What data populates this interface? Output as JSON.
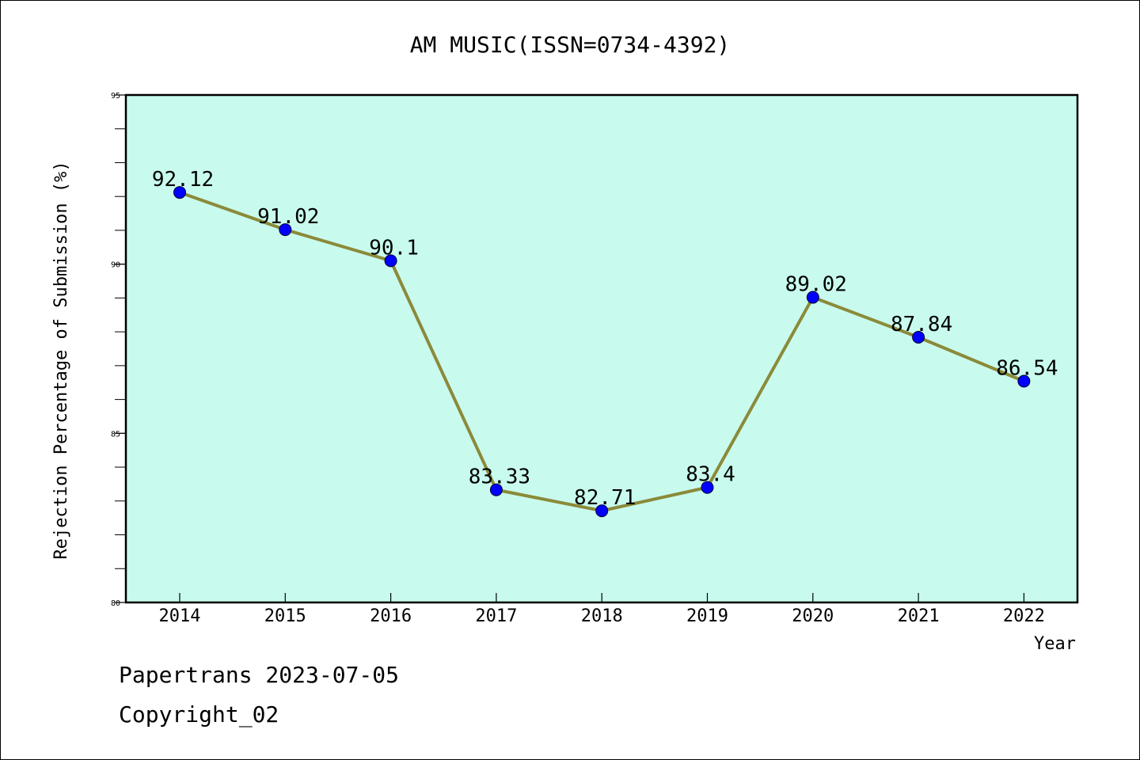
{
  "chart_data": {
    "type": "line",
    "title": "AM MUSIC(ISSN=0734-4392)",
    "xlabel": "Year",
    "ylabel": "Rejection Percentage of Submission (%)",
    "categories": [
      "2014",
      "2015",
      "2016",
      "2017",
      "2018",
      "2019",
      "2020",
      "2021",
      "2022"
    ],
    "series": [
      {
        "values": [
          92.12,
          91.02,
          90.1,
          83.33,
          82.71,
          83.4,
          89.02,
          87.84,
          86.54
        ]
      }
    ],
    "data_labels": [
      "92.12",
      "91.02",
      "90.1",
      "83.33",
      "82.71",
      "83.4",
      "89.02",
      "87.84",
      "86.54"
    ],
    "ylim": [
      80,
      95
    ],
    "yticks": [
      80,
      85,
      90,
      95
    ],
    "grid": false,
    "colors": {
      "plot_background": "#c8fbee",
      "line": "#8b8a3a",
      "marker": "#0000ff"
    }
  },
  "footer": {
    "line1": "Papertrans 2023-07-05",
    "line2": "Copyright_02"
  }
}
